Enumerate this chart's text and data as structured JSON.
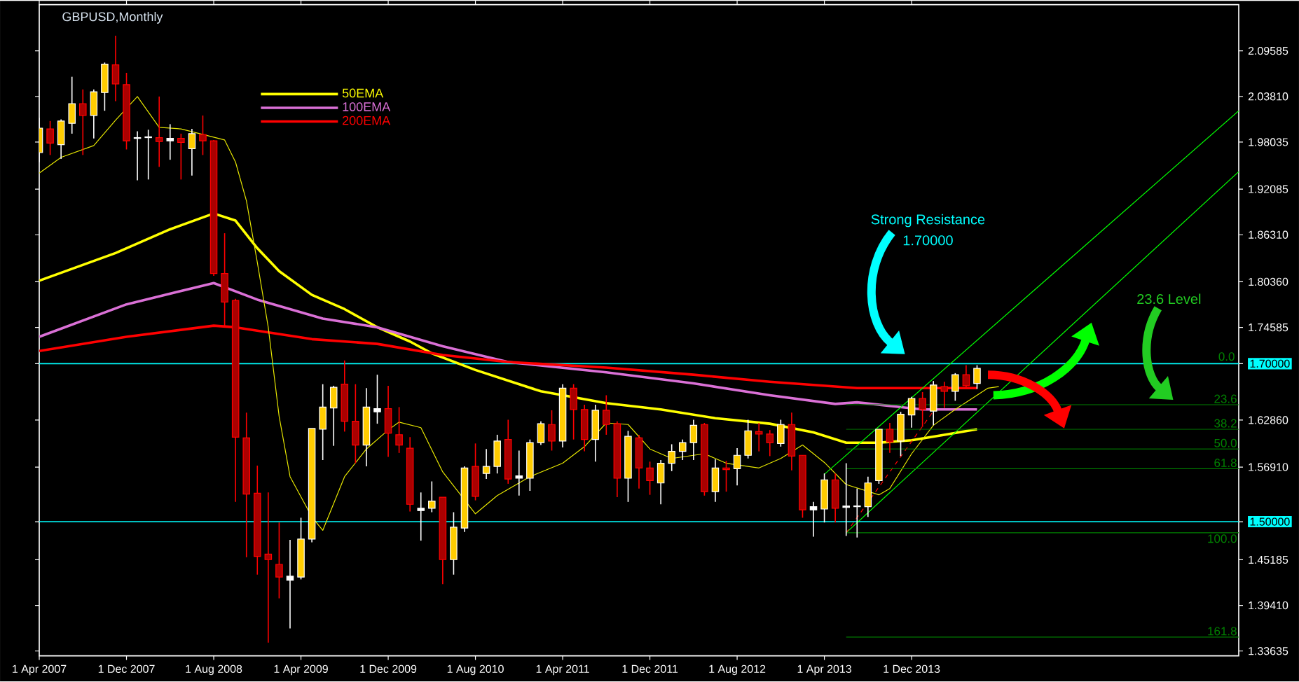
{
  "chart_data": {
    "type": "candlestick",
    "title": "GBPUSD,Monthly",
    "x": [
      "2007-04",
      "2007-05",
      "2007-06",
      "2007-07",
      "2007-08",
      "2007-09",
      "2007-10",
      "2007-11",
      "2007-12",
      "2008-01",
      "2008-02",
      "2008-03",
      "2008-04",
      "2008-05",
      "2008-06",
      "2008-07",
      "2008-08",
      "2008-09",
      "2008-10",
      "2008-11",
      "2008-12",
      "2009-01",
      "2009-02",
      "2009-03",
      "2009-04",
      "2009-05",
      "2009-06",
      "2009-07",
      "2009-08",
      "2009-09",
      "2009-10",
      "2009-11",
      "2009-12",
      "2010-01",
      "2010-02",
      "2010-03",
      "2010-04",
      "2010-05",
      "2010-06",
      "2010-07",
      "2010-08",
      "2010-09",
      "2010-10",
      "2010-11",
      "2010-12",
      "2011-01",
      "2011-02",
      "2011-03",
      "2011-04",
      "2011-05",
      "2011-06",
      "2011-07",
      "2011-08",
      "2011-09",
      "2011-10",
      "2011-11",
      "2011-12",
      "2012-01",
      "2012-02",
      "2012-03",
      "2012-04",
      "2012-05",
      "2012-06",
      "2012-07",
      "2012-08",
      "2012-09",
      "2012-10",
      "2012-11",
      "2012-12",
      "2013-01",
      "2013-02",
      "2013-03",
      "2013-04",
      "2013-05",
      "2013-06",
      "2013-07",
      "2013-08",
      "2013-09",
      "2013-10",
      "2013-11",
      "2013-12",
      "2014-01",
      "2014-02",
      "2014-03",
      "2014-04",
      "2014-05",
      "2014-06"
    ],
    "ohlc": [
      [
        1.967,
        2.011,
        1.955,
        1.998
      ],
      [
        1.997,
        2.007,
        1.964,
        1.979
      ],
      [
        1.977,
        2.009,
        1.959,
        2.007
      ],
      [
        2.004,
        2.063,
        1.991,
        2.029
      ],
      [
        2.029,
        2.047,
        1.964,
        2.014
      ],
      [
        2.014,
        2.047,
        1.985,
        2.044
      ],
      [
        2.043,
        2.081,
        2.02,
        2.079
      ],
      [
        2.078,
        2.115,
        2.032,
        2.054
      ],
      [
        2.053,
        2.068,
        1.971,
        1.982
      ],
      [
        1.985,
        1.994,
        1.932,
        1.986
      ],
      [
        1.986,
        1.996,
        1.933,
        1.987
      ],
      [
        1.986,
        2.038,
        1.949,
        1.981
      ],
      [
        1.982,
        2.003,
        1.958,
        1.985
      ],
      [
        1.985,
        1.991,
        1.933,
        1.98
      ],
      [
        1.972,
        1.997,
        1.938,
        1.991
      ],
      [
        1.99,
        2.014,
        1.964,
        1.982
      ],
      [
        1.982,
        1.983,
        1.811,
        1.814
      ],
      [
        1.814,
        1.865,
        1.746,
        1.778
      ],
      [
        1.78,
        1.782,
        1.525,
        1.607
      ],
      [
        1.606,
        1.638,
        1.455,
        1.535
      ],
      [
        1.536,
        1.571,
        1.433,
        1.456
      ],
      [
        1.459,
        1.537,
        1.347,
        1.452
      ],
      [
        1.446,
        1.499,
        1.403,
        1.43
      ],
      [
        1.426,
        1.477,
        1.365,
        1.431
      ],
      [
        1.43,
        1.505,
        1.427,
        1.478
      ],
      [
        1.478,
        1.618,
        1.474,
        1.618
      ],
      [
        1.617,
        1.674,
        1.578,
        1.645
      ],
      [
        1.644,
        1.672,
        1.596,
        1.67
      ],
      [
        1.674,
        1.704,
        1.614,
        1.627
      ],
      [
        1.627,
        1.674,
        1.574,
        1.597
      ],
      [
        1.597,
        1.669,
        1.57,
        1.645
      ],
      [
        1.639,
        1.686,
        1.624,
        1.643
      ],
      [
        1.643,
        1.672,
        1.582,
        1.612
      ],
      [
        1.61,
        1.645,
        1.587,
        1.597
      ],
      [
        1.593,
        1.607,
        1.513,
        1.522
      ],
      [
        1.514,
        1.537,
        1.476,
        1.517
      ],
      [
        1.517,
        1.551,
        1.512,
        1.526
      ],
      [
        1.531,
        1.531,
        1.421,
        1.452
      ],
      [
        1.452,
        1.512,
        1.433,
        1.493
      ],
      [
        1.492,
        1.57,
        1.487,
        1.568
      ],
      [
        1.57,
        1.599,
        1.527,
        1.532
      ],
      [
        1.561,
        1.592,
        1.554,
        1.57
      ],
      [
        1.57,
        1.61,
        1.561,
        1.602
      ],
      [
        1.604,
        1.629,
        1.548,
        1.554
      ],
      [
        1.555,
        1.59,
        1.533,
        1.558
      ],
      [
        1.555,
        1.604,
        1.539,
        1.6
      ],
      [
        1.6,
        1.627,
        1.597,
        1.624
      ],
      [
        1.623,
        1.641,
        1.59,
        1.602
      ],
      [
        1.602,
        1.674,
        1.594,
        1.669
      ],
      [
        1.669,
        1.674,
        1.604,
        1.642
      ],
      [
        1.642,
        1.648,
        1.589,
        1.604
      ],
      [
        1.604,
        1.648,
        1.576,
        1.641
      ],
      [
        1.641,
        1.66,
        1.61,
        1.623
      ],
      [
        1.624,
        1.627,
        1.531,
        1.555
      ],
      [
        1.555,
        1.615,
        1.525,
        1.608
      ],
      [
        1.606,
        1.61,
        1.542,
        1.568
      ],
      [
        1.568,
        1.576,
        1.534,
        1.552
      ],
      [
        1.549,
        1.578,
        1.522,
        1.574
      ],
      [
        1.574,
        1.598,
        1.564,
        1.589
      ],
      [
        1.589,
        1.604,
        1.578,
        1.6
      ],
      [
        1.6,
        1.629,
        1.578,
        1.622
      ],
      [
        1.623,
        1.625,
        1.533,
        1.538
      ],
      [
        1.538,
        1.579,
        1.525,
        1.568
      ],
      [
        1.568,
        1.577,
        1.538,
        1.566
      ],
      [
        1.567,
        1.593,
        1.546,
        1.584
      ],
      [
        1.584,
        1.629,
        1.58,
        1.615
      ],
      [
        1.614,
        1.625,
        1.589,
        1.611
      ],
      [
        1.611,
        1.616,
        1.583,
        1.6
      ],
      [
        1.599,
        1.629,
        1.595,
        1.623
      ],
      [
        1.623,
        1.638,
        1.565,
        1.583
      ],
      [
        1.584,
        1.584,
        1.505,
        1.515
      ],
      [
        1.515,
        1.525,
        1.481,
        1.519
      ],
      [
        1.516,
        1.561,
        1.499,
        1.553
      ],
      [
        1.553,
        1.561,
        1.499,
        1.517
      ],
      [
        1.518,
        1.574,
        1.482,
        1.52
      ],
      [
        1.519,
        1.542,
        1.48,
        1.52
      ],
      [
        1.519,
        1.557,
        1.506,
        1.549
      ],
      [
        1.552,
        1.617,
        1.548,
        1.617
      ],
      [
        1.617,
        1.625,
        1.587,
        1.601
      ],
      [
        1.602,
        1.639,
        1.583,
        1.636
      ],
      [
        1.635,
        1.658,
        1.619,
        1.656
      ],
      [
        1.656,
        1.664,
        1.62,
        1.642
      ],
      [
        1.64,
        1.678,
        1.622,
        1.673
      ],
      [
        1.671,
        1.677,
        1.644,
        1.665
      ],
      [
        1.665,
        1.688,
        1.653,
        1.686
      ],
      [
        1.686,
        1.698,
        1.668,
        1.672
      ],
      [
        1.675,
        1.698,
        1.668,
        1.694
      ]
    ],
    "colors": [
      "#ffcc00",
      "#aa0000",
      "#ffcc00",
      "#ffcc00",
      "#aa0000",
      "#ffcc00",
      "#ffcc00",
      "#aa0000",
      "#aa0000",
      "#ffffff",
      "#ffffff",
      "#aa0000",
      "#ffffff",
      "#aa0000",
      "#ffcc00",
      "#aa0000",
      "#aa0000",
      "#aa0000",
      "#aa0000",
      "#aa0000",
      "#aa0000",
      "#aa0000",
      "#aa0000",
      "#ffffff",
      "#ffcc00",
      "#ffcc00",
      "#ffcc00",
      "#ffcc00",
      "#aa0000",
      "#aa0000",
      "#ffcc00",
      "#ffffff",
      "#aa0000",
      "#aa0000",
      "#aa0000",
      "#ffffff",
      "#ffcc00",
      "#aa0000",
      "#ffcc00",
      "#ffcc00",
      "#aa0000",
      "#ffcc00",
      "#ffcc00",
      "#aa0000",
      "#ffffff",
      "#ffcc00",
      "#ffcc00",
      "#aa0000",
      "#ffcc00",
      "#aa0000",
      "#aa0000",
      "#ffcc00",
      "#aa0000",
      "#aa0000",
      "#ffcc00",
      "#aa0000",
      "#aa0000",
      "#ffcc00",
      "#ffcc00",
      "#ffcc00",
      "#ffcc00",
      "#aa0000",
      "#ffcc00",
      "#aa0000",
      "#ffcc00",
      "#ffcc00",
      "#aa0000",
      "#aa0000",
      "#ffcc00",
      "#aa0000",
      "#aa0000",
      "#ffffff",
      "#ffcc00",
      "#aa0000",
      "#ffffff",
      "#ffffff",
      "#ffcc00",
      "#ffcc00",
      "#aa0000",
      "#ffcc00",
      "#ffcc00",
      "#aa0000",
      "#ffcc00",
      "#aa0000",
      "#ffcc00",
      "#aa0000",
      "#ffcc00"
    ],
    "series": [
      {
        "type": "line",
        "name": "50EMA",
        "color": "#ffff00",
        "x": [
          "2007-04",
          "2007-11",
          "2008-04",
          "2008-08",
          "2008-10",
          "2008-12",
          "2009-02",
          "2009-05",
          "2009-08",
          "2009-11",
          "2010-02",
          "2010-04",
          "2010-08",
          "2011-02",
          "2011-08",
          "2012-01",
          "2012-06",
          "2012-11",
          "2013-03",
          "2013-06",
          "2013-09",
          "2013-12",
          "2014-03",
          "2014-06"
        ],
        "values": [
          1.805,
          1.84,
          1.87,
          1.89,
          1.881,
          1.846,
          1.817,
          1.787,
          1.769,
          1.746,
          1.728,
          1.713,
          1.692,
          1.665,
          1.65,
          1.642,
          1.631,
          1.624,
          1.613,
          1.6,
          1.6,
          1.603,
          1.61,
          1.617
        ]
      },
      {
        "type": "line",
        "name": "100EMA",
        "color": "#da70d6",
        "x": [
          "2007-04",
          "2007-12",
          "2008-08",
          "2008-12",
          "2009-06",
          "2009-11",
          "2010-05",
          "2010-11",
          "2011-08",
          "2012-04",
          "2012-11",
          "2013-05",
          "2013-07",
          "2014-01",
          "2014-06"
        ],
        "values": [
          1.734,
          1.775,
          1.802,
          1.781,
          1.757,
          1.746,
          1.722,
          1.702,
          1.689,
          1.675,
          1.66,
          1.649,
          1.651,
          1.642,
          1.642
        ]
      },
      {
        "type": "line",
        "name": "200EMA",
        "color": "#ff0000",
        "x": [
          "2007-04",
          "2007-12",
          "2008-08",
          "2008-10",
          "2009-05",
          "2009-11",
          "2010-05",
          "2010-11",
          "2011-08",
          "2012-04",
          "2012-11",
          "2013-07",
          "2014-06"
        ],
        "values": [
          1.716,
          1.734,
          1.748,
          1.746,
          1.731,
          1.725,
          1.711,
          1.702,
          1.695,
          1.686,
          1.677,
          1.669,
          1.669
        ]
      },
      {
        "type": "line",
        "color": "#e6e600",
        "x": [
          "2007-04",
          "2007-06",
          "2007-09",
          "2007-11",
          "2008-01",
          "2008-03",
          "2008-05",
          "2008-09",
          "2008-10",
          "2008-11",
          "2008-12",
          "2009-01",
          "2009-02",
          "2009-03",
          "2009-05",
          "2009-06",
          "2009-08",
          "2009-10",
          "2009-12",
          "2010-01",
          "2010-03",
          "2010-05",
          "2010-08",
          "2010-10",
          "2011-01",
          "2011-04",
          "2011-06",
          "2011-08",
          "2011-10",
          "2011-12",
          "2012-02",
          "2012-05",
          "2012-07",
          "2012-10",
          "2012-12",
          "2013-02",
          "2013-04",
          "2013-06",
          "2013-09",
          "2013-10",
          "2013-12",
          "2014-02",
          "2014-04",
          "2014-07",
          "2014-08"
        ],
        "values": [
          1.941,
          1.961,
          1.976,
          2.008,
          2.038,
          1.999,
          1.997,
          1.983,
          1.955,
          1.906,
          1.828,
          1.746,
          1.633,
          1.557,
          1.506,
          1.489,
          1.557,
          1.592,
          1.616,
          1.626,
          1.619,
          1.563,
          1.51,
          1.533,
          1.557,
          1.574,
          1.595,
          1.625,
          1.623,
          1.592,
          1.58,
          1.586,
          1.574,
          1.568,
          1.58,
          1.597,
          1.575,
          1.547,
          1.534,
          1.542,
          1.586,
          1.622,
          1.642,
          1.669,
          1.671
        ]
      },
      {
        "type": "line",
        "color": "#00ff00",
        "x": [
          "2013-04",
          "2016-06"
        ],
        "values": [
          1.56,
          2.02
        ]
      },
      {
        "type": "line",
        "color": "#00ff00",
        "x": [
          "2013-06",
          "2016-06"
        ],
        "values": [
          1.486,
          1.943
        ]
      },
      {
        "type": "line",
        "color": "#ff0000",
        "line_style": "dashed",
        "x": [
          "2013-06",
          "2014-02"
        ],
        "values": [
          1.486,
          1.64
        ]
      },
      {
        "type": "line",
        "color": "#008000",
        "x": [
          "2013-06",
          "2016-06"
        ],
        "values": [
          1.648,
          1.648
        ]
      },
      {
        "type": "line",
        "color": "#008000",
        "x": [
          "2013-06",
          "2016-06"
        ],
        "values": [
          1.617,
          1.617
        ]
      },
      {
        "type": "line",
        "color": "#008000",
        "x": [
          "2013-06",
          "2016-06"
        ],
        "values": [
          1.592,
          1.592
        ]
      },
      {
        "type": "line",
        "color": "#008000",
        "x": [
          "2013-06",
          "2016-06"
        ],
        "values": [
          1.567,
          1.567
        ]
      },
      {
        "type": "line",
        "color": "#008000",
        "x": [
          "2013-06",
          "2016-06"
        ],
        "values": [
          1.486,
          1.486
        ]
      },
      {
        "type": "line",
        "color": "#008000",
        "x": [
          "2013-06",
          "2016-06"
        ],
        "values": [
          1.354,
          1.354
        ]
      }
    ],
    "ref_lines": [
      {
        "axis": "y",
        "value": 1.7,
        "color": "#00ffff"
      },
      {
        "axis": "y",
        "value": 1.5,
        "color": "#00ffff"
      }
    ],
    "annotations": [
      "Strong Resistance",
      "1.70000",
      "23.6 Level",
      "0.0",
      {
        "text": "23.6",
        "x": "2016-06",
        "y": 1.648
      },
      {
        "text": "38.2",
        "x": "2016-06",
        "y": 1.617
      },
      {
        "text": "50.0",
        "x": "2016-06",
        "y": 1.592
      },
      {
        "text": "61.8",
        "x": "2016-06",
        "y": 1.567
      },
      {
        "text": "100.0",
        "x": "2016-06",
        "y": 1.486
      },
      {
        "text": "161.8",
        "x": "2016-06",
        "y": 1.354
      }
    ],
    "legend": "top left",
    "xlim": [
      "2007-04",
      "2016-06"
    ],
    "xticks": [
      {
        "value": "2007-04",
        "label": "1 Apr 2007"
      },
      {
        "value": "2007-12",
        "label": "1 Dec 2007"
      },
      {
        "value": "2008-08",
        "label": "1 Aug 2008"
      },
      {
        "value": "2009-04",
        "label": "1 Apr 2009"
      },
      {
        "value": "2009-12",
        "label": "1 Dec 2009"
      },
      {
        "value": "2010-08",
        "label": "1 Aug 2010"
      },
      {
        "value": "2011-04",
        "label": "1 Apr 2011"
      },
      {
        "value": "2011-12",
        "label": "1 Dec 2011"
      },
      {
        "value": "2012-08",
        "label": "1 Aug 2012"
      },
      {
        "value": "2013-04",
        "label": "1 Apr 2013"
      },
      {
        "value": "2013-12",
        "label": "1 Dec 2013"
      }
    ],
    "ylim": [
      1.3303,
      2.1543
    ],
    "yticks": [
      2.09585,
      {
        "value": 2.0381,
        "label": "2.03810"
      },
      1.98035,
      1.92085,
      {
        "value": 1.8631,
        "label": "1.86310"
      },
      {
        "value": 1.8036,
        "label": "1.80360"
      },
      1.74585,
      {
        "value": 1.7,
        "label": "1.70000"
      },
      {
        "value": 1.6286,
        "label": "1.62860"
      },
      {
        "value": 1.5691,
        "label": "1.56910"
      },
      {
        "value": 1.5,
        "label": "1.50000"
      },
      1.45185,
      {
        "value": 1.3941,
        "label": "1.39410"
      },
      1.33635
    ]
  }
}
